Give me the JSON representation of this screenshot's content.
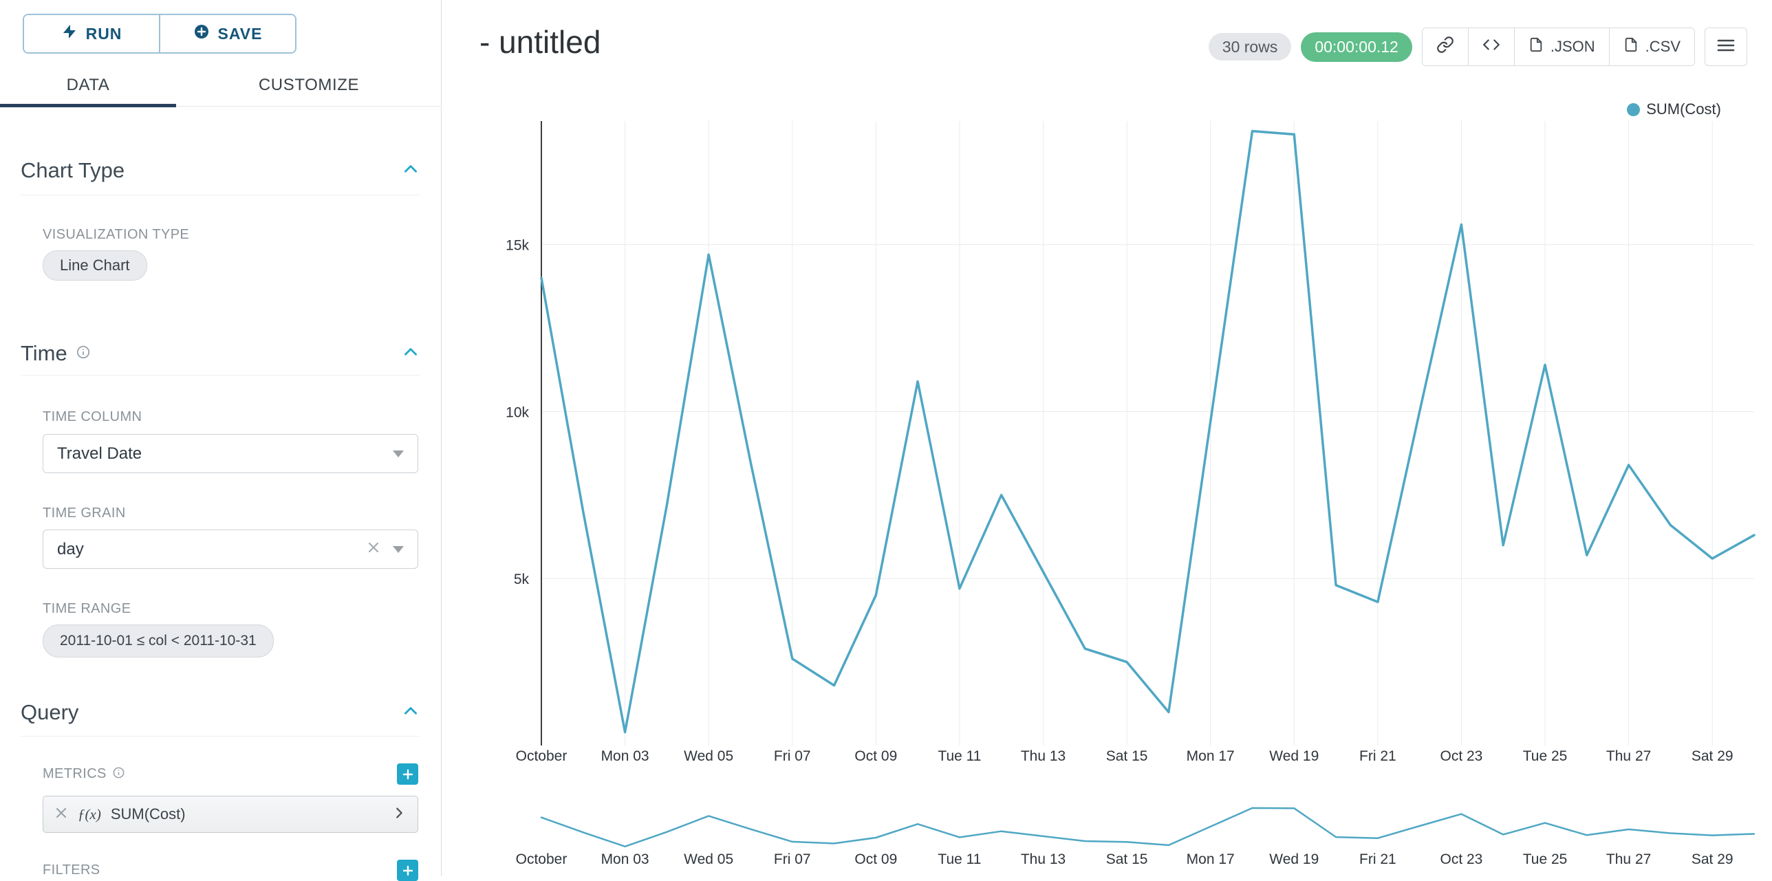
{
  "sidebar": {
    "run_button": {
      "label": "RUN"
    },
    "save_button": {
      "label": "SAVE"
    },
    "tabs": {
      "data": "DATA",
      "customize": "CUSTOMIZE"
    },
    "chart_type_section": {
      "title": "Chart Type",
      "visualization_type_label": "VISUALIZATION TYPE",
      "visualization_type_value": "Line Chart"
    },
    "time_section": {
      "title": "Time",
      "time_column_label": "TIME COLUMN",
      "time_column_value": "Travel Date",
      "time_grain_label": "TIME GRAIN",
      "time_grain_value": "day",
      "time_range_label": "TIME RANGE",
      "time_range_value": "2011-10-01 ≤ col < 2011-10-31"
    },
    "query_section": {
      "title": "Query",
      "metrics_label": "METRICS",
      "metric": {
        "fx": "ƒ(x)",
        "label": "SUM(Cost)"
      },
      "filters_label": "FILTERS"
    }
  },
  "header": {
    "title": "- untitled",
    "rows_badge": "30 rows",
    "timer_badge": "00:00:00.12",
    "export_json_label": ".JSON",
    "export_csv_label": ".CSV"
  },
  "legend": {
    "series_label": "SUM(Cost)"
  },
  "colors": {
    "accent": "#20a7c9",
    "line": "#4fa7c4",
    "grid": "#e9ebec",
    "axis_line": "#3c3c3c",
    "timer_badge_bg": "#5fbe8a",
    "rows_badge_bg": "#e4e6e9",
    "tab_underline": "#28405c",
    "button_text": "#14567b"
  },
  "chart_data": {
    "type": "line",
    "title": "",
    "legend_position": "top-right",
    "grid": true,
    "x": [
      "2011-10-01",
      "2011-10-02",
      "2011-10-03",
      "2011-10-04",
      "2011-10-05",
      "2011-10-06",
      "2011-10-07",
      "2011-10-08",
      "2011-10-09",
      "2011-10-10",
      "2011-10-11",
      "2011-10-12",
      "2011-10-13",
      "2011-10-14",
      "2011-10-15",
      "2011-10-16",
      "2011-10-17",
      "2011-10-18",
      "2011-10-19",
      "2011-10-20",
      "2011-10-21",
      "2011-10-22",
      "2011-10-23",
      "2011-10-24",
      "2011-10-25",
      "2011-10-26",
      "2011-10-27",
      "2011-10-28",
      "2011-10-29",
      "2011-10-30"
    ],
    "series": [
      {
        "name": "SUM(Cost)",
        "values": [
          14000,
          7000,
          400,
          7200,
          14700,
          8500,
          2600,
          1800,
          4500,
          10900,
          4700,
          7500,
          5200,
          2900,
          2500,
          1000,
          9700,
          18400,
          18300,
          4800,
          4300,
          10000,
          15600,
          6000,
          11400,
          5700,
          8400,
          6600,
          5600,
          6300
        ]
      }
    ],
    "x_tick_indices": [
      0,
      2,
      4,
      6,
      8,
      10,
      12,
      14,
      16,
      18,
      20,
      22,
      24,
      26,
      28
    ],
    "x_tick_labels": [
      "October",
      "Mon 03",
      "Wed 05",
      "Fri 07",
      "Oct 09",
      "Tue 11",
      "Thu 13",
      "Sat 15",
      "Mon 17",
      "Wed 19",
      "Fri 21",
      "Oct 23",
      "Tue 25",
      "Thu 27",
      "Sat 29"
    ],
    "y_ticks": [
      {
        "value": 5000,
        "label": "5k"
      },
      {
        "value": 10000,
        "label": "10k"
      },
      {
        "value": 15000,
        "label": "15k"
      }
    ],
    "ylim": [
      0,
      18700
    ],
    "xlabel": "",
    "ylabel": "",
    "has_mini_chart": true
  }
}
